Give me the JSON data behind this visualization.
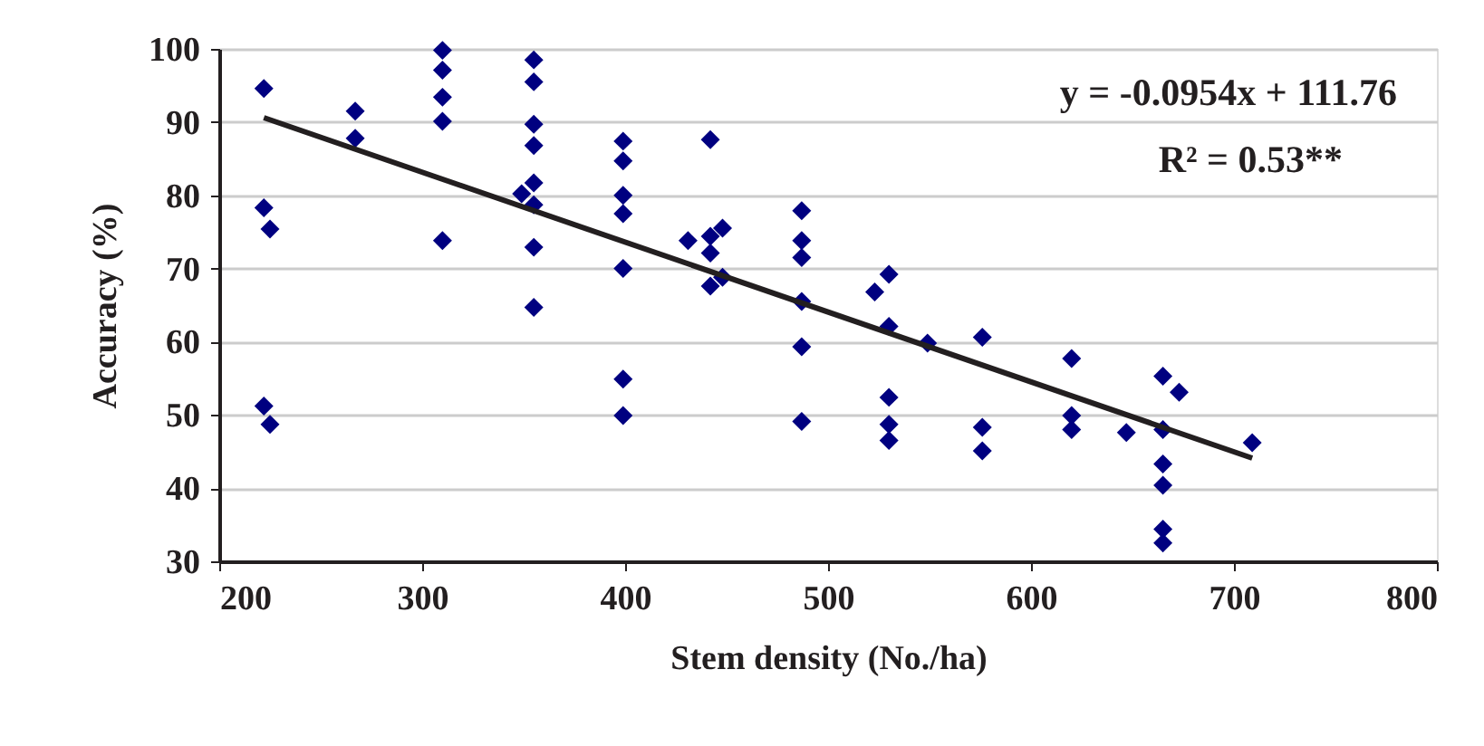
{
  "chart_data": {
    "type": "scatter",
    "xlabel": "Stem density (No./ha)",
    "ylabel": "Accuracy (%)",
    "xlim": [
      200,
      800
    ],
    "xticks": [
      200,
      300,
      400,
      500,
      600,
      700,
      800
    ],
    "ylim": [
      30,
      100
    ],
    "yticks": [
      30,
      40,
      50,
      60,
      70,
      80,
      90,
      100
    ],
    "grid": "y",
    "marker": "diamond",
    "annotations": [
      "y = -0.0954x + 111.76",
      "R² = 0.53**"
    ],
    "series": [
      {
        "color": "#000080",
        "x": [
          222,
          222,
          225,
          222,
          225,
          267,
          267,
          310,
          310,
          310,
          310,
          310,
          355,
          355,
          355,
          355,
          355,
          349,
          355,
          355,
          355,
          399,
          399,
          399,
          399,
          399,
          399,
          399,
          431,
          442,
          442,
          448,
          442,
          448,
          442,
          487,
          487,
          487,
          487,
          487,
          487,
          523,
          530,
          530,
          530,
          530,
          530,
          549,
          576,
          576,
          576,
          620,
          620,
          620,
          647,
          665,
          673,
          665,
          665,
          665,
          665,
          665,
          709
        ],
        "values": [
          94.6,
          78.3,
          75.4,
          51.2,
          48.7,
          91.5,
          87.8,
          99.8,
          97.1,
          93.4,
          90.1,
          73.8,
          98.5,
          95.5,
          89.7,
          86.8,
          81.7,
          80.2,
          78.7,
          72.9,
          64.7,
          87.4,
          84.7,
          80.0,
          77.5,
          70.0,
          54.9,
          49.9,
          73.8,
          87.6,
          74.4,
          75.5,
          72.1,
          68.8,
          67.6,
          77.9,
          73.8,
          71.5,
          65.5,
          59.3,
          49.1,
          66.8,
          69.2,
          62.1,
          52.4,
          48.7,
          46.5,
          59.8,
          60.6,
          48.3,
          45.1,
          57.7,
          49.9,
          48.0,
          47.6,
          55.3,
          53.1,
          48.0,
          43.3,
          40.4,
          34.4,
          32.5,
          46.2
        ]
      },
      {
        "type": "line",
        "marker": "none",
        "line_style": "solid",
        "color": "#231f20",
        "x": [
          222,
          709
        ],
        "values": [
          90.6,
          44.1
        ]
      }
    ]
  }
}
